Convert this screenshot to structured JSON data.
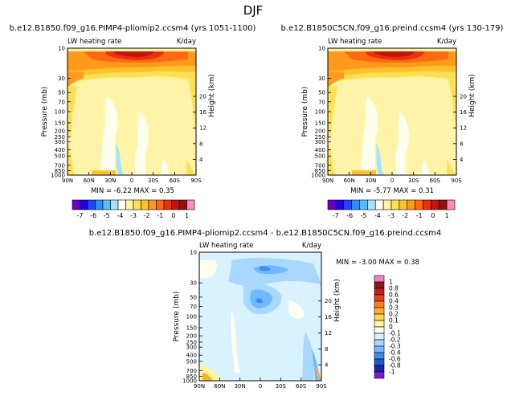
{
  "figure_title": "DJF",
  "chart_data": [
    {
      "type": "heatmap",
      "title": "b.e12.B1850.f09_g16.PIMP4-pliomip2.ccsm4 (yrs 1051-1100)",
      "subtitle_left": "LW heating rate",
      "subtitle_right": "K/day",
      "xlabel": "",
      "ylabel": "Pressure (mb)",
      "ylabel_right": "Height (km)",
      "x_ticks": [
        "90N",
        "60N",
        "30N",
        "0",
        "30S",
        "60S",
        "90S"
      ],
      "y_ticks": [
        "10",
        "30",
        "50",
        "70",
        "100",
        "150",
        "200",
        "250",
        "300",
        "400",
        "500",
        "700",
        "850",
        "1000"
      ],
      "y_ticks_right": [
        "20",
        "16",
        "12",
        "8",
        "4"
      ],
      "xlim": [
        90,
        -90
      ],
      "ylim": [
        1000,
        10
      ],
      "stats": "MIN =   -6.22   MAX =    0.35",
      "min": -6.22,
      "max": 0.35,
      "field_type": "absolute"
    },
    {
      "type": "heatmap",
      "title": "b.e12.B1850C5CN.f09_g16.preind.ccsm4 (yrs 130-179)",
      "subtitle_left": "LW heating rate",
      "subtitle_right": "K/day",
      "xlabel": "",
      "ylabel": "Pressure (mb)",
      "ylabel_right": "Height (km)",
      "x_ticks": [
        "90N",
        "60N",
        "30N",
        "0",
        "30S",
        "60S",
        "90S"
      ],
      "y_ticks": [
        "10",
        "30",
        "50",
        "70",
        "100",
        "150",
        "200",
        "250",
        "300",
        "400",
        "500",
        "700",
        "850",
        "1000"
      ],
      "y_ticks_right": [
        "20",
        "16",
        "12",
        "8",
        "4"
      ],
      "xlim": [
        90,
        -90
      ],
      "ylim": [
        1000,
        10
      ],
      "stats": "MIN =   -5.77   MAX =    0.31",
      "min": -5.77,
      "max": 0.31,
      "field_type": "absolute"
    },
    {
      "type": "heatmap",
      "title": "b.e12.B1850.f09_g16.PIMP4-pliomip2.ccsm4 - b.e12.B1850C5CN.f09_g16.preind.ccsm4",
      "subtitle_left": "LW heating rate",
      "subtitle_right": "K/day",
      "xlabel": "",
      "ylabel": "Pressure (mb)",
      "ylabel_right": "Height (km)",
      "x_ticks": [
        "90N",
        "60N",
        "30N",
        "0",
        "30S",
        "60S",
        "90S"
      ],
      "y_ticks": [
        "10",
        "30",
        "50",
        "70",
        "100",
        "150",
        "200",
        "250",
        "300",
        "400",
        "500",
        "700",
        "850",
        "1000"
      ],
      "y_ticks_right": [
        "20",
        "16",
        "12",
        "8",
        "4"
      ],
      "xlim": [
        90,
        -90
      ],
      "ylim": [
        1000,
        10
      ],
      "stats": "MIN =   -3.00   MAX =    0.38",
      "min": -3.0,
      "max": 0.38,
      "field_type": "difference"
    }
  ],
  "colorbar_absolute": {
    "labels": [
      "-7",
      "-6",
      "-5",
      "-4",
      "-3",
      "-2",
      "-1",
      "0",
      "1"
    ],
    "colors": [
      "#6a00c8",
      "#2200dd",
      "#1e46ff",
      "#2e8cff",
      "#55bbff",
      "#a4e2ff",
      "#fffff0",
      "#fff3a8",
      "#ffe050",
      "#ffc22d",
      "#ff9a1c",
      "#ff6a10",
      "#ee2f0f",
      "#c4140e",
      "#901008",
      "#ff8ac0"
    ]
  },
  "colorbar_difference": {
    "labels": [
      "1",
      "0.8",
      "0.6",
      "0.4",
      "0.3",
      "0.2",
      "0.1",
      "0",
      "-0.1",
      "-0.2",
      "-0.3",
      "-0.4",
      "-0.6",
      "-0.8",
      "-1"
    ],
    "colors": [
      "#ff80c0",
      "#8b1a1a",
      "#c41e1e",
      "#e8401c",
      "#ff7a1c",
      "#ffae2e",
      "#ffd84e",
      "#fff59e",
      "#fffff0",
      "#d8f2ff",
      "#a8d8ff",
      "#72b8ff",
      "#3a90f0",
      "#1e5ad2",
      "#1428a8",
      "#7a18d8"
    ]
  }
}
